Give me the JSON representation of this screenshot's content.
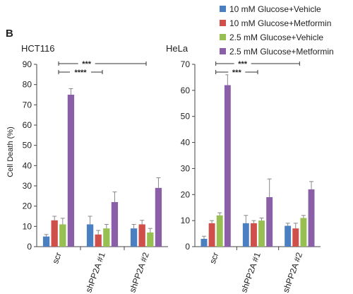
{
  "panel_label": "B",
  "y_axis_label": "Cell Death (%)",
  "colors": {
    "10 mM Glucose+Vehicle": "#4a7fc1",
    "10 mM Glucose+Metformin": "#cf4f4b",
    "2.5 mM Glucose+Vehicle": "#97bf51",
    "2.5 mM Glucose+Metformin": "#8a5fa8"
  },
  "legend": [
    "10 mM Glucose+Vehicle",
    "10 mM Glucose+Metformin",
    "2.5 mM Glucose+Vehicle",
    "2.5 mM Glucose+Metformin"
  ],
  "chart_data": [
    {
      "type": "bar",
      "title": "HCT116",
      "ylabel": "Cell Death (%)",
      "ylim": [
        0,
        90
      ],
      "yticks": [
        0,
        10,
        20,
        30,
        40,
        50,
        60,
        70,
        80,
        90
      ],
      "categories": [
        "scr",
        "shPP2A #1",
        "shPP2A #2"
      ],
      "series": [
        {
          "name": "10 mM Glucose+Vehicle",
          "values": [
            5,
            11,
            9
          ],
          "errors": [
            1,
            4,
            2
          ]
        },
        {
          "name": "10 mM Glucose+Metformin",
          "values": [
            13,
            6,
            11
          ],
          "errors": [
            2,
            2,
            2
          ]
        },
        {
          "name": "2.5 mM Glucose+Vehicle",
          "values": [
            11,
            9,
            7
          ],
          "errors": [
            3,
            2,
            2
          ]
        },
        {
          "name": "2.5 mM Glucose+Metformin",
          "values": [
            75,
            22,
            29
          ],
          "errors": [
            3,
            5,
            5
          ]
        }
      ],
      "significance": [
        {
          "label": "****",
          "from_category": 0,
          "to_category": 1
        },
        {
          "label": "***",
          "from_category": 0,
          "to_category": 2
        }
      ]
    },
    {
      "type": "bar",
      "title": "HeLa",
      "ylabel": "",
      "ylim": [
        0,
        70
      ],
      "yticks": [
        0,
        10,
        20,
        30,
        40,
        50,
        60,
        70
      ],
      "categories": [
        "scr",
        "shPP2A #1",
        "shPP2A #2"
      ],
      "series": [
        {
          "name": "10 mM Glucose+Vehicle",
          "values": [
            3,
            9,
            8
          ],
          "errors": [
            1,
            3,
            1
          ]
        },
        {
          "name": "10 mM Glucose+Metformin",
          "values": [
            9,
            9,
            7
          ],
          "errors": [
            1,
            1,
            2
          ]
        },
        {
          "name": "2.5 mM Glucose+Vehicle",
          "values": [
            12,
            10,
            11
          ],
          "errors": [
            1,
            1,
            1
          ]
        },
        {
          "name": "2.5 mM Glucose+Metformin",
          "values": [
            62,
            19,
            22
          ],
          "errors": [
            4,
            7,
            3
          ]
        }
      ],
      "significance": [
        {
          "label": "***",
          "from_category": 0,
          "to_category": 1
        },
        {
          "label": "***",
          "from_category": 0,
          "to_category": 2
        }
      ]
    }
  ]
}
